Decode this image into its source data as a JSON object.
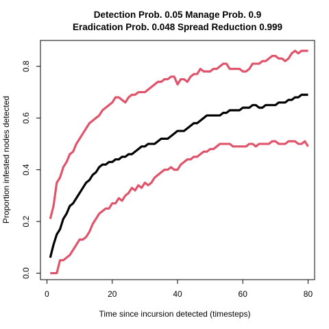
{
  "chart_data": {
    "type": "line",
    "title": "Detection Prob. 0.05 Manage Prob. 0.9",
    "subtitle": "Eradication Prob. 0.048 Spread Reduction 0.999",
    "xlabel": "Time since incursion detected (timesteps)",
    "ylabel": "Proportion infested nodes detected",
    "xlim": [
      -2,
      82
    ],
    "ylim": [
      -0.025,
      0.9
    ],
    "x_ticks": [
      0,
      20,
      40,
      60,
      80
    ],
    "x_tick_labels": [
      "0",
      "20",
      "40",
      "60",
      "80"
    ],
    "y_ticks": [
      0.0,
      0.2,
      0.4,
      0.6,
      0.8
    ],
    "y_tick_labels": [
      "0.0",
      "0.2",
      "0.4",
      "0.6",
      "0.8"
    ],
    "grid": false,
    "x": [
      1,
      2,
      3,
      4,
      5,
      6,
      7,
      8,
      9,
      10,
      11,
      12,
      13,
      14,
      15,
      16,
      17,
      18,
      19,
      20,
      21,
      22,
      23,
      24,
      25,
      26,
      27,
      28,
      29,
      30,
      31,
      32,
      33,
      34,
      35,
      36,
      37,
      38,
      39,
      40,
      41,
      42,
      43,
      44,
      45,
      46,
      47,
      48,
      49,
      50,
      51,
      52,
      53,
      54,
      55,
      56,
      57,
      58,
      59,
      60,
      61,
      62,
      63,
      64,
      65,
      66,
      67,
      68,
      69,
      70,
      71,
      72,
      73,
      74,
      75,
      76,
      77,
      78,
      79,
      80
    ],
    "series": [
      {
        "color": "#df536b",
        "values": [
          0.21,
          0.26,
          0.35,
          0.37,
          0.41,
          0.43,
          0.46,
          0.47,
          0.5,
          0.52,
          0.54,
          0.56,
          0.58,
          0.59,
          0.6,
          0.61,
          0.63,
          0.64,
          0.65,
          0.66,
          0.68,
          0.68,
          0.67,
          0.66,
          0.68,
          0.69,
          0.69,
          0.7,
          0.7,
          0.7,
          0.71,
          0.72,
          0.73,
          0.74,
          0.74,
          0.75,
          0.75,
          0.76,
          0.76,
          0.73,
          0.75,
          0.75,
          0.74,
          0.76,
          0.77,
          0.77,
          0.79,
          0.78,
          0.78,
          0.78,
          0.79,
          0.79,
          0.8,
          0.81,
          0.81,
          0.79,
          0.79,
          0.79,
          0.79,
          0.78,
          0.78,
          0.79,
          0.81,
          0.81,
          0.81,
          0.82,
          0.82,
          0.83,
          0.84,
          0.84,
          0.83,
          0.83,
          0.82,
          0.83,
          0.85,
          0.86,
          0.85,
          0.86,
          0.86,
          0.86
        ]
      },
      {
        "color": "#000000",
        "values": [
          0.06,
          0.11,
          0.15,
          0.17,
          0.21,
          0.23,
          0.26,
          0.27,
          0.29,
          0.31,
          0.33,
          0.35,
          0.36,
          0.38,
          0.39,
          0.41,
          0.42,
          0.42,
          0.43,
          0.43,
          0.44,
          0.44,
          0.45,
          0.45,
          0.46,
          0.46,
          0.47,
          0.48,
          0.49,
          0.49,
          0.5,
          0.5,
          0.5,
          0.51,
          0.52,
          0.52,
          0.52,
          0.53,
          0.54,
          0.55,
          0.55,
          0.55,
          0.56,
          0.57,
          0.58,
          0.58,
          0.59,
          0.6,
          0.61,
          0.61,
          0.61,
          0.61,
          0.61,
          0.62,
          0.62,
          0.63,
          0.63,
          0.63,
          0.63,
          0.64,
          0.64,
          0.64,
          0.65,
          0.65,
          0.64,
          0.64,
          0.65,
          0.65,
          0.65,
          0.65,
          0.66,
          0.66,
          0.66,
          0.67,
          0.67,
          0.68,
          0.68,
          0.69,
          0.69,
          0.69
        ]
      },
      {
        "color": "#df536b",
        "values": [
          0.0,
          0.0,
          0.0,
          0.05,
          0.05,
          0.06,
          0.07,
          0.09,
          0.11,
          0.13,
          0.13,
          0.14,
          0.16,
          0.19,
          0.21,
          0.23,
          0.24,
          0.25,
          0.25,
          0.27,
          0.27,
          0.29,
          0.28,
          0.3,
          0.31,
          0.33,
          0.32,
          0.34,
          0.33,
          0.35,
          0.34,
          0.35,
          0.37,
          0.38,
          0.39,
          0.4,
          0.4,
          0.41,
          0.4,
          0.4,
          0.42,
          0.43,
          0.44,
          0.44,
          0.45,
          0.45,
          0.46,
          0.47,
          0.47,
          0.48,
          0.48,
          0.49,
          0.5,
          0.5,
          0.5,
          0.5,
          0.49,
          0.49,
          0.49,
          0.49,
          0.49,
          0.5,
          0.5,
          0.49,
          0.5,
          0.5,
          0.5,
          0.5,
          0.51,
          0.51,
          0.5,
          0.5,
          0.5,
          0.51,
          0.51,
          0.51,
          0.5,
          0.5,
          0.51,
          0.49
        ]
      }
    ]
  }
}
